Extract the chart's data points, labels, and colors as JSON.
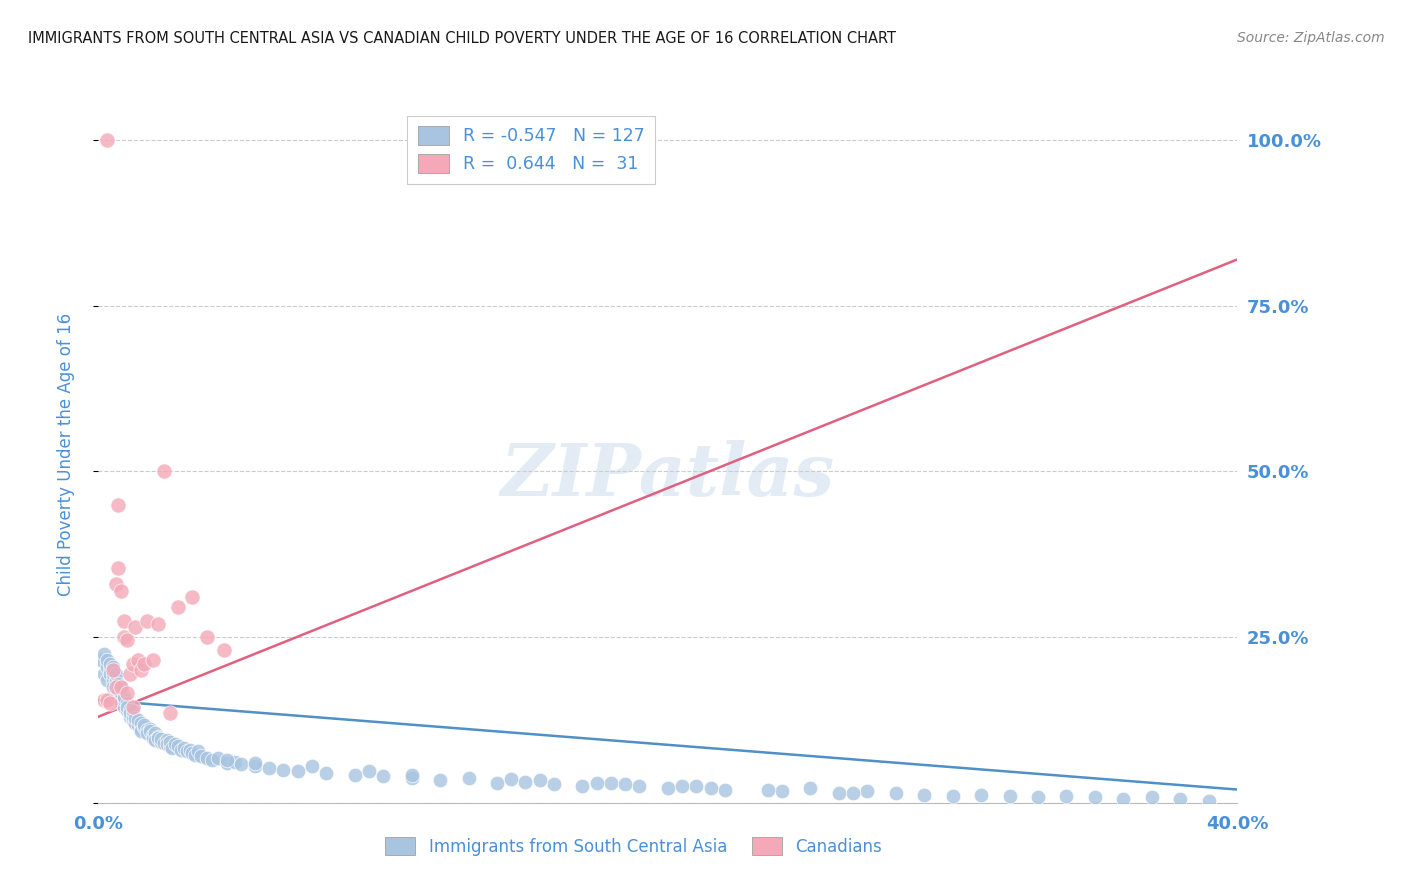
{
  "title": "IMMIGRANTS FROM SOUTH CENTRAL ASIA VS CANADIAN CHILD POVERTY UNDER THE AGE OF 16 CORRELATION CHART",
  "source": "Source: ZipAtlas.com",
  "ylabel": "Child Poverty Under the Age of 16",
  "watermark": "ZIPatlas",
  "legend_blue_label": "Immigrants from South Central Asia",
  "legend_pink_label": "Canadians",
  "blue_R": -0.547,
  "blue_N": 127,
  "pink_R": 0.644,
  "pink_N": 31,
  "blue_color": "#a8c4e0",
  "pink_color": "#f4a8b8",
  "blue_line_color": "#5090c8",
  "pink_line_color": "#e06080",
  "title_color": "#1a1a1a",
  "source_color": "#888888",
  "axis_label_color": "#4a90d9",
  "xlim": [
    0.0,
    0.4
  ],
  "ylim": [
    0.0,
    1.05
  ],
  "yticks": [
    0.0,
    0.25,
    0.5,
    0.75,
    1.0
  ],
  "ytick_labels": [
    "",
    "25.0%",
    "50.0%",
    "75.0%",
    "100.0%"
  ],
  "grid_color": "#cccccc",
  "bg_color": "#ffffff",
  "blue_trend_x": [
    0.0,
    0.4
  ],
  "blue_trend_y": [
    0.155,
    0.02
  ],
  "pink_trend_x": [
    0.0,
    0.4
  ],
  "pink_trend_y": [
    0.13,
    0.82
  ],
  "blue_scatter_x": [
    0.001,
    0.002,
    0.002,
    0.003,
    0.003,
    0.003,
    0.004,
    0.004,
    0.004,
    0.005,
    0.005,
    0.005,
    0.005,
    0.006,
    0.006,
    0.006,
    0.007,
    0.007,
    0.007,
    0.007,
    0.008,
    0.008,
    0.008,
    0.008,
    0.009,
    0.009,
    0.009,
    0.01,
    0.01,
    0.01,
    0.011,
    0.011,
    0.011,
    0.012,
    0.012,
    0.012,
    0.013,
    0.013,
    0.014,
    0.014,
    0.015,
    0.015,
    0.015,
    0.016,
    0.016,
    0.017,
    0.017,
    0.018,
    0.018,
    0.019,
    0.019,
    0.02,
    0.02,
    0.021,
    0.021,
    0.022,
    0.022,
    0.023,
    0.024,
    0.024,
    0.025,
    0.025,
    0.026,
    0.027,
    0.028,
    0.029,
    0.03,
    0.031,
    0.032,
    0.033,
    0.034,
    0.035,
    0.036,
    0.038,
    0.04,
    0.042,
    0.045,
    0.048,
    0.05,
    0.055,
    0.06,
    0.065,
    0.07,
    0.08,
    0.09,
    0.1,
    0.11,
    0.12,
    0.14,
    0.15,
    0.16,
    0.17,
    0.18,
    0.19,
    0.2,
    0.21,
    0.22,
    0.24,
    0.25,
    0.26,
    0.27,
    0.28,
    0.29,
    0.3,
    0.31,
    0.32,
    0.33,
    0.34,
    0.35,
    0.36,
    0.37,
    0.38,
    0.39,
    0.095,
    0.13,
    0.155,
    0.175,
    0.205,
    0.235,
    0.265,
    0.075,
    0.055,
    0.045,
    0.11,
    0.145,
    0.185,
    0.215
  ],
  "blue_scatter_y": [
    0.215,
    0.225,
    0.195,
    0.205,
    0.215,
    0.185,
    0.2,
    0.195,
    0.21,
    0.185,
    0.195,
    0.175,
    0.205,
    0.175,
    0.185,
    0.195,
    0.16,
    0.17,
    0.18,
    0.165,
    0.155,
    0.165,
    0.15,
    0.175,
    0.145,
    0.155,
    0.16,
    0.14,
    0.15,
    0.145,
    0.13,
    0.14,
    0.135,
    0.125,
    0.13,
    0.138,
    0.12,
    0.128,
    0.118,
    0.125,
    0.112,
    0.12,
    0.108,
    0.115,
    0.118,
    0.11,
    0.105,
    0.112,
    0.108,
    0.102,
    0.098,
    0.105,
    0.095,
    0.1,
    0.098,
    0.092,
    0.096,
    0.09,
    0.095,
    0.088,
    0.085,
    0.092,
    0.082,
    0.088,
    0.085,
    0.08,
    0.082,
    0.078,
    0.08,
    0.075,
    0.072,
    0.078,
    0.07,
    0.068,
    0.065,
    0.068,
    0.06,
    0.062,
    0.058,
    0.055,
    0.052,
    0.05,
    0.048,
    0.045,
    0.042,
    0.04,
    0.038,
    0.035,
    0.03,
    0.032,
    0.028,
    0.025,
    0.03,
    0.025,
    0.022,
    0.025,
    0.02,
    0.018,
    0.022,
    0.015,
    0.018,
    0.015,
    0.012,
    0.01,
    0.012,
    0.01,
    0.008,
    0.01,
    0.008,
    0.005,
    0.008,
    0.005,
    0.003,
    0.048,
    0.038,
    0.035,
    0.03,
    0.025,
    0.02,
    0.015,
    0.055,
    0.06,
    0.065,
    0.042,
    0.036,
    0.028,
    0.022
  ],
  "pink_scatter_x": [
    0.002,
    0.003,
    0.004,
    0.005,
    0.006,
    0.007,
    0.007,
    0.008,
    0.009,
    0.009,
    0.01,
    0.011,
    0.012,
    0.013,
    0.014,
    0.015,
    0.016,
    0.017,
    0.019,
    0.021,
    0.023,
    0.025,
    0.028,
    0.033,
    0.038,
    0.044,
    0.006,
    0.008,
    0.01,
    0.012,
    0.003
  ],
  "pink_scatter_y": [
    0.155,
    0.155,
    0.15,
    0.2,
    0.33,
    0.45,
    0.355,
    0.32,
    0.275,
    0.25,
    0.245,
    0.195,
    0.21,
    0.265,
    0.215,
    0.2,
    0.21,
    0.275,
    0.215,
    0.27,
    0.5,
    0.135,
    0.295,
    0.31,
    0.25,
    0.23,
    0.175,
    0.175,
    0.165,
    0.145,
    1.0
  ]
}
